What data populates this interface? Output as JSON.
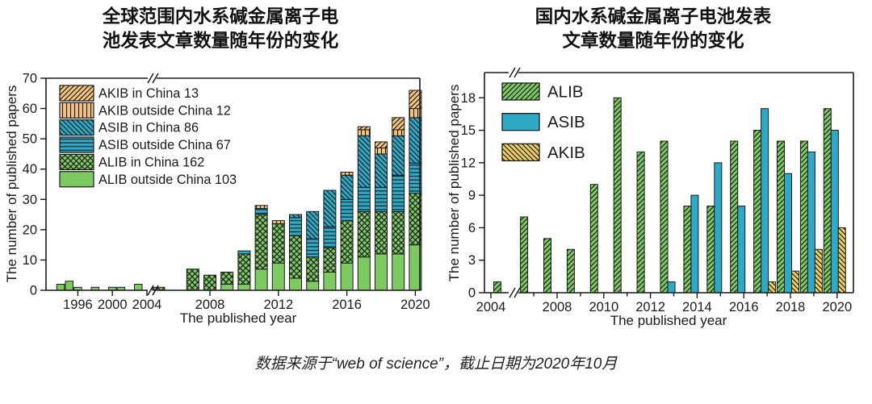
{
  "page": {
    "background": "#ffffff"
  },
  "caption": "数据来源于“web of science”，截止日期为2020年10月",
  "colors": {
    "green": "#7dcb60",
    "teal": "#2ea9c6",
    "orange": "#f6c57c",
    "yellow": "#eed05e",
    "ink": "#1a1a1a"
  },
  "chart_data": [
    {
      "id": "global",
      "type": "bar",
      "subtype": "stacked",
      "title_lines": [
        "全球范围内水系碱金属离子电",
        "池发表文章数量随年份的变化"
      ],
      "xlabel": "The published year",
      "ylabel": "The number of published papers",
      "ylim": [
        0,
        70
      ],
      "y_ticks": [
        0,
        10,
        20,
        30,
        40,
        50,
        60,
        70
      ],
      "x_tick_labels": [
        1996,
        2000,
        2004,
        2008,
        2012,
        2016,
        2020
      ],
      "axis_break_between": [
        2004,
        2005
      ],
      "grid": false,
      "legend_position": "upper-left",
      "legend": [
        {
          "label": "AKIB in China 13",
          "series": "akib_in",
          "fill": "#f6c57c",
          "hatch": "diag-up",
          "total": 13
        },
        {
          "label": "AKIB outside China 12",
          "series": "akib_out",
          "fill": "#f6c57c",
          "hatch": "vertical",
          "total": 12
        },
        {
          "label": "ASIB in China 86",
          "series": "asib_in",
          "fill": "#2ea9c6",
          "hatch": "diag-down",
          "total": 86
        },
        {
          "label": "ASIB outside China 67",
          "series": "asib_out",
          "fill": "#2ea9c6",
          "hatch": "horizontal",
          "total": 67
        },
        {
          "label": "ALIB in China 162",
          "series": "alib_in",
          "fill": "#7dcb60",
          "hatch": "cross",
          "total": 162
        },
        {
          "label": "ALIB outside China 103",
          "series": "alib_out",
          "fill": "#7dcb60",
          "hatch": "none",
          "total": 103
        }
      ],
      "stack_order_bottom_to_top": [
        "alib_out",
        "alib_in",
        "asib_out",
        "asib_in",
        "akib_out",
        "akib_in"
      ],
      "bars": [
        {
          "year": 1994,
          "alib_out": 2
        },
        {
          "year": 1995,
          "alib_out": 3
        },
        {
          "year": 1996,
          "alib_out": 1
        },
        {
          "year": 1998,
          "alib_out": 1
        },
        {
          "year": 2000,
          "alib_out": 1
        },
        {
          "year": 2001,
          "alib_out": 1
        },
        {
          "year": 2003,
          "alib_out": 2
        },
        {
          "year": 2005,
          "alib_in": 1
        },
        {
          "year": 2007,
          "alib_in": 7
        },
        {
          "year": 2008,
          "alib_in": 5
        },
        {
          "year": 2009,
          "alib_out": 2,
          "alib_in": 4
        },
        {
          "year": 2010,
          "alib_out": 2,
          "alib_in": 10,
          "asib_out": 1
        },
        {
          "year": 2011,
          "alib_out": 7,
          "alib_in": 18,
          "asib_out": 2,
          "akib_out": 1
        },
        {
          "year": 2012,
          "alib_out": 9,
          "alib_in": 13,
          "akib_out": 1
        },
        {
          "year": 2013,
          "alib_out": 4,
          "alib_in": 14,
          "asib_out": 6,
          "asib_in": 1
        },
        {
          "year": 2014,
          "alib_out": 3,
          "alib_in": 8,
          "asib_out": 6,
          "asib_in": 9
        },
        {
          "year": 2015,
          "alib_out": 6,
          "alib_in": 8,
          "asib_out": 7,
          "asib_in": 12
        },
        {
          "year": 2016,
          "alib_out": 9,
          "alib_in": 14,
          "asib_out": 7,
          "asib_in": 8,
          "akib_out": 1
        },
        {
          "year": 2017,
          "alib_out": 11,
          "alib_in": 15,
          "asib_out": 8,
          "asib_in": 17,
          "akib_out": 2,
          "akib_in": 1
        },
        {
          "year": 2018,
          "alib_out": 12,
          "alib_in": 14,
          "asib_out": 8,
          "asib_in": 11,
          "akib_out": 2,
          "akib_in": 2
        },
        {
          "year": 2019,
          "alib_out": 12,
          "alib_in": 14,
          "asib_out": 12,
          "asib_in": 13,
          "akib_out": 2,
          "akib_in": 4
        },
        {
          "year": 2020,
          "alib_out": 15,
          "alib_in": 17,
          "asib_out": 10,
          "asib_in": 15,
          "akib_out": 3,
          "akib_in": 6
        }
      ]
    },
    {
      "id": "domestic",
      "type": "bar",
      "subtype": "grouped",
      "title_lines": [
        "国内水系碱金属离子电池发表",
        "文章数量随年份的变化"
      ],
      "xlabel": "The published year",
      "ylabel": "The number of published papers",
      "ylim": [
        0,
        20
      ],
      "y_ticks": [
        0,
        3,
        6,
        9,
        12,
        15,
        18
      ],
      "x_tick_labels": [
        2004,
        2008,
        2010,
        2012,
        2014,
        2016,
        2018,
        2020
      ],
      "axis_break_between": [
        2004,
        2007
      ],
      "grid": false,
      "legend_position": "upper-left",
      "legend": [
        {
          "label": "ALIB",
          "series": "alib",
          "fill": "#7dcb60",
          "hatch": "diag-up"
        },
        {
          "label": "ASIB",
          "series": "asib",
          "fill": "#2ea9c6",
          "hatch": "none"
        },
        {
          "label": "AKIB",
          "series": "akib",
          "fill": "#eed05e",
          "hatch": "diag-down"
        }
      ],
      "bars": [
        {
          "year": 2004,
          "alib": 1
        },
        {
          "year": 2007,
          "alib": 7
        },
        {
          "year": 2008,
          "alib": 5
        },
        {
          "year": 2009,
          "alib": 4
        },
        {
          "year": 2010,
          "alib": 10
        },
        {
          "year": 2011,
          "alib": 18
        },
        {
          "year": 2012,
          "alib": 13
        },
        {
          "year": 2013,
          "alib": 14,
          "asib": 1
        },
        {
          "year": 2014,
          "alib": 8,
          "asib": 9
        },
        {
          "year": 2015,
          "alib": 8,
          "asib": 12
        },
        {
          "year": 2016,
          "alib": 14,
          "asib": 8
        },
        {
          "year": 2017,
          "alib": 15,
          "asib": 17,
          "akib": 1
        },
        {
          "year": 2018,
          "alib": 14,
          "asib": 11,
          "akib": 2
        },
        {
          "year": 2019,
          "alib": 14,
          "asib": 13,
          "akib": 4
        },
        {
          "year": 2020,
          "alib": 17,
          "asib": 15,
          "akib": 6
        }
      ]
    }
  ]
}
